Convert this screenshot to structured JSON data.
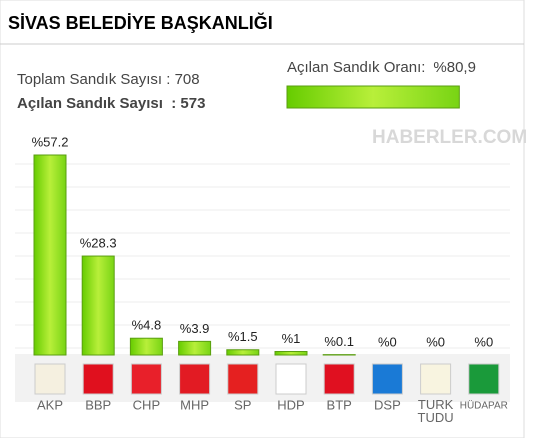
{
  "chart_data": {
    "type": "bar",
    "title": "SİVAS BELEDİYE BAŞKANLIĞI",
    "categories": [
      "AKP",
      "BBP",
      "CHP",
      "MHP",
      "SP",
      "HDP",
      "BTP",
      "DSP",
      "TURK TUDU",
      "HÜDAPAR"
    ],
    "values": [
      57.2,
      28.3,
      4.8,
      3.9,
      1.5,
      1,
      0.1,
      0,
      0,
      0
    ],
    "value_labels": [
      "%57.2",
      "%28.3",
      "%4.8",
      "%3.9",
      "%1.5",
      "%1",
      "%0.1",
      "%0",
      "%0",
      "%0"
    ],
    "color": "#7ed321"
  },
  "summary": {
    "total_label": "Toplam Sandık Sayısı : ",
    "total": 708,
    "opened_label": "Açılan Sandık Sayısı  : ",
    "opened": 573,
    "rate_label": "Açılan Sandık Oranı:",
    "rate": {
      "value": 80.9,
      "label": "%80,9"
    }
  },
  "watermark": "HABERLER.COM"
}
